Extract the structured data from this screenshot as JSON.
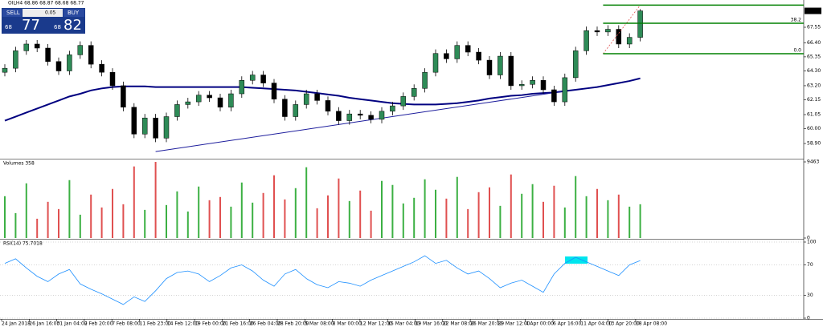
{
  "header": {
    "symbol_line": "OILH4 68.86 68.87 68.68 68.77"
  },
  "trade_panel": {
    "sell": "SELL",
    "lot": "0.05",
    "buy": "BUY",
    "sell_prefix": "68",
    "sell_price": "77",
    "buy_prefix": "68",
    "buy_price": "82"
  },
  "x_labels": [
    "24 Jan 2018",
    "26 Jan 16:00",
    "31 Jan 04:00",
    "2 Feb 20:00",
    "7 Feb 08:00",
    "11 Feb 23:00",
    "14 Feb 12:00",
    "19 Feb 00:00",
    "21 Feb 16:00",
    "26 Feb 04:00",
    "28 Feb 20:00",
    "5 Mar 08:00",
    "8 Mar 00:00",
    "12 Mar 12:00",
    "15 Mar 04:00",
    "19 Mar 16:00",
    "22 Mar 08:00",
    "26 Mar 20:00",
    "29 Mar 12:00",
    "4 Apr 00:00",
    "6 Apr 16:00",
    "11 Apr 04:00",
    "13 Apr 20:00",
    "18 Apr 08:00"
  ],
  "chart_data": [
    {
      "type": "candlestick",
      "up_color": "#2e8b57",
      "down_color": "#000000",
      "open": [
        64.2,
        64.5,
        65.8,
        66.3,
        66.0,
        65.0,
        64.3,
        65.5,
        66.2,
        64.8,
        64.2,
        63.2,
        61.6,
        59.6,
        60.8,
        59.3,
        60.9,
        61.8,
        62.0,
        62.5,
        62.3,
        61.6,
        62.6,
        63.6,
        64.0,
        63.4,
        62.2,
        60.9,
        61.8,
        62.6,
        62.1,
        61.3,
        60.6,
        61.1,
        61.0,
        60.7,
        61.3,
        61.7,
        62.4,
        63.0,
        64.2,
        65.6,
        65.2,
        66.2,
        65.7,
        65.1,
        64.0,
        65.4,
        63.2,
        63.3,
        63.6,
        62.9,
        62.0,
        63.8,
        65.8,
        67.3,
        67.2,
        67.4,
        66.3,
        66.8
      ],
      "high": [
        64.8,
        66.1,
        66.6,
        66.6,
        66.3,
        65.3,
        65.8,
        66.5,
        66.5,
        65.1,
        64.5,
        63.5,
        61.9,
        61.1,
        61.1,
        61.2,
        62.1,
        62.3,
        62.8,
        62.8,
        62.6,
        62.9,
        63.9,
        64.3,
        64.3,
        63.7,
        62.5,
        62.1,
        62.9,
        62.9,
        62.4,
        61.6,
        61.4,
        61.4,
        61.3,
        61.6,
        62.0,
        62.7,
        63.3,
        64.5,
        65.9,
        65.9,
        66.5,
        66.5,
        66.0,
        65.4,
        65.7,
        65.7,
        63.6,
        63.9,
        63.9,
        63.2,
        64.1,
        66.1,
        67.6,
        67.6,
        67.7,
        67.7,
        67.1,
        68.9
      ],
      "low": [
        63.9,
        64.2,
        65.5,
        65.7,
        64.7,
        64.0,
        64.0,
        65.2,
        64.5,
        63.9,
        62.9,
        61.3,
        59.3,
        59.3,
        59.0,
        59.0,
        60.6,
        61.5,
        61.7,
        62.0,
        61.3,
        61.3,
        62.3,
        63.3,
        63.1,
        61.9,
        60.6,
        60.6,
        61.5,
        61.8,
        61.0,
        60.3,
        60.3,
        60.7,
        60.4,
        60.4,
        61.0,
        61.4,
        62.1,
        62.7,
        63.9,
        64.9,
        64.9,
        65.4,
        64.8,
        63.7,
        63.7,
        62.9,
        62.9,
        63.0,
        62.6,
        61.7,
        61.7,
        63.5,
        65.5,
        66.9,
        66.9,
        66.0,
        66.0,
        66.5
      ],
      "close": [
        64.5,
        65.8,
        66.3,
        66.0,
        65.0,
        64.3,
        65.5,
        66.2,
        64.8,
        64.2,
        63.2,
        61.6,
        59.6,
        60.8,
        59.3,
        60.9,
        61.8,
        62.0,
        62.5,
        62.3,
        61.6,
        62.6,
        63.6,
        64.0,
        63.4,
        62.2,
        60.9,
        61.8,
        62.6,
        62.1,
        61.3,
        60.6,
        61.1,
        61.0,
        60.7,
        61.3,
        61.7,
        62.4,
        63.0,
        64.2,
        65.6,
        65.2,
        66.2,
        65.7,
        65.1,
        64.0,
        65.4,
        63.2,
        63.3,
        63.6,
        62.9,
        62.0,
        63.8,
        65.8,
        67.3,
        67.2,
        67.4,
        66.3,
        66.8,
        68.77
      ],
      "ma": {
        "color": "#000080",
        "values": [
          60.6,
          60.9,
          61.2,
          61.5,
          61.8,
          62.1,
          62.4,
          62.6,
          62.85,
          63.0,
          63.1,
          63.15,
          63.15,
          63.15,
          63.1,
          63.1,
          63.1,
          63.1,
          63.1,
          63.1,
          63.1,
          63.1,
          63.1,
          63.05,
          63.0,
          62.95,
          62.9,
          62.85,
          62.75,
          62.65,
          62.55,
          62.45,
          62.3,
          62.2,
          62.1,
          62.0,
          61.9,
          61.85,
          61.8,
          61.8,
          61.8,
          61.85,
          61.9,
          62.0,
          62.1,
          62.25,
          62.35,
          62.45,
          62.5,
          62.6,
          62.65,
          62.7,
          62.8,
          62.9,
          63.0,
          63.1,
          63.25,
          63.4,
          63.55,
          63.75
        ]
      },
      "trendline": {
        "color": "#1c1c9c",
        "x": [
          14,
          52
        ],
        "y": [
          58.3,
          62.8
        ]
      },
      "fibo": {
        "color": "#008000",
        "from": 56,
        "levels": [
          {
            "value": 69.2
          },
          {
            "value": 67.85,
            "label": "38.2"
          },
          {
            "value": 65.58,
            "label": "0.0"
          }
        ]
      },
      "ylim": [
        57.83,
        69.28
      ],
      "yticks": [
        {
          "value": 58.9,
          "label": "58.90"
        },
        {
          "value": 60.0,
          "label": "60.00"
        },
        {
          "value": 61.05,
          "label": "61.05"
        },
        {
          "value": 62.15,
          "label": "62.15"
        },
        {
          "value": 63.2,
          "label": "63.20"
        },
        {
          "value": 64.3,
          "label": "64.30"
        },
        {
          "value": 65.35,
          "label": "65.35"
        },
        {
          "value": 66.4,
          "label": "66.40"
        },
        {
          "value": 67.55,
          "label": "67.55"
        }
      ]
    },
    {
      "type": "bar",
      "title": "Volumes 358",
      "up_color": "#3cb043",
      "down_color": "#e05050",
      "values": [
        5200,
        3100,
        6800,
        2400,
        4500,
        3600,
        7200,
        2900,
        5400,
        3800,
        6100,
        4200,
        8900,
        3500,
        9463,
        4100,
        5800,
        3300,
        6400,
        4700,
        5100,
        3900,
        6900,
        4400,
        5600,
        7800,
        4800,
        6200,
        8800,
        3700,
        5300,
        7400,
        4600,
        5900,
        3400,
        7100,
        6600,
        4300,
        5000,
        7300,
        6000,
        4900,
        7600,
        3600,
        5700,
        6300,
        4000,
        7900,
        5500,
        6700,
        4500,
        6500,
        3800,
        7700,
        5200,
        6100,
        4700,
        5400,
        3900,
        4200
      ],
      "ylim": [
        0,
        9463
      ],
      "yticks": [
        0,
        9463
      ]
    },
    {
      "type": "line",
      "title": "RSI(14) 75.7018",
      "color": "#1e90ff",
      "values": [
        72,
        78,
        66,
        55,
        48,
        58,
        64,
        45,
        38,
        32,
        25,
        18,
        28,
        22,
        36,
        52,
        60,
        62,
        58,
        48,
        56,
        66,
        70,
        62,
        50,
        42,
        58,
        64,
        52,
        44,
        40,
        48,
        46,
        42,
        50,
        56,
        62,
        68,
        74,
        82,
        72,
        76,
        66,
        58,
        62,
        52,
        40,
        46,
        50,
        42,
        34,
        58,
        72,
        80,
        74,
        68,
        62,
        56,
        70,
        75.7018
      ],
      "ylim": [
        0,
        100
      ],
      "yticks": [
        0,
        30,
        70,
        100
      ],
      "grid": true
    }
  ]
}
